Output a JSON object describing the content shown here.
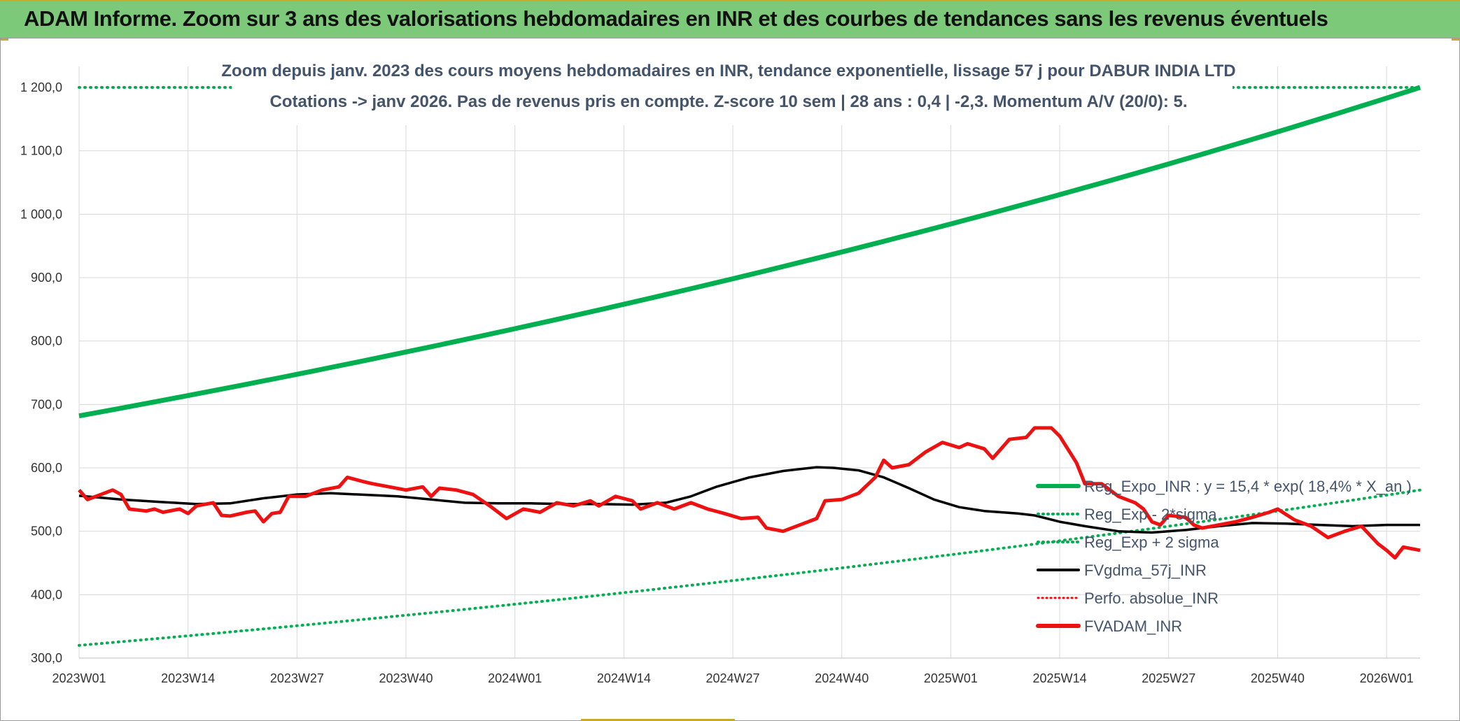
{
  "banner": {
    "title": "ADAM Informe. Zoom sur 3 ans des valorisations hebdomadaires en INR et des courbes de tendances sans les revenus éventuels",
    "bg_color": "#7dc97a"
  },
  "chart_data": {
    "type": "line",
    "title_line1": "Zoom depuis janv. 2023 des cours moyens hebdomadaires en INR, tendance exponentielle, lissage 57 j pour DABUR INDIA LTD",
    "title_line2": "Cotations -> janv 2026. Pas de revenus pris en compte. Z-score 10 sem | 28 ans : 0,4 | -2,3. Momentum A/V (20/0): 5.",
    "xlabel": "",
    "ylabel": "",
    "ylim": [
      300,
      1200
    ],
    "y_ticks": [
      "300,0",
      "400,0",
      "500,0",
      "600,0",
      "700,0",
      "800,0",
      "900,0",
      "1 000,0",
      "1 100,0",
      "1 200,0"
    ],
    "y_tick_values": [
      300,
      400,
      500,
      600,
      700,
      800,
      900,
      1000,
      1100,
      1200
    ],
    "x_ticks": [
      "2023W01",
      "2023W14",
      "2023W27",
      "2023W40",
      "2024W01",
      "2024W14",
      "2024W27",
      "2024W40",
      "2025W01",
      "2025W14",
      "2025W27",
      "2025W40",
      "2026W01"
    ],
    "x_tick_weeks": [
      0,
      13,
      26,
      39,
      52,
      65,
      78,
      91,
      104,
      117,
      130,
      143,
      156
    ],
    "x_total_weeks": 160,
    "grid": true,
    "legend_position": "bottom-right",
    "series": [
      {
        "name": "Reg_Expo_INR : y = 15,4 * exp( 18,4% * X_an )",
        "color": "#00b050",
        "style": "solid-thick",
        "start_value": 682,
        "end_value": 1200
      },
      {
        "name": "Reg_Exp - 2*sigma",
        "color": "#00b050",
        "style": "dotted",
        "start_value": 320,
        "end_value": 565
      },
      {
        "name": "Reg_Exp + 2 sigma",
        "color": "#00b050",
        "style": "dotted",
        "value": 1200
      },
      {
        "name": "FVgdma_57j_INR",
        "color": "#000000",
        "style": "solid",
        "points": [
          [
            0,
            556
          ],
          [
            5,
            550
          ],
          [
            10,
            546
          ],
          [
            14,
            543
          ],
          [
            18,
            544
          ],
          [
            22,
            552
          ],
          [
            26,
            558
          ],
          [
            30,
            560
          ],
          [
            35,
            557
          ],
          [
            38,
            555
          ],
          [
            42,
            550
          ],
          [
            46,
            545
          ],
          [
            50,
            544
          ],
          [
            54,
            544
          ],
          [
            58,
            543
          ],
          [
            62,
            543
          ],
          [
            66,
            542
          ],
          [
            70,
            545
          ],
          [
            73,
            555
          ],
          [
            76,
            570
          ],
          [
            80,
            585
          ],
          [
            84,
            595
          ],
          [
            88,
            601
          ],
          [
            90,
            600
          ],
          [
            93,
            596
          ],
          [
            96,
            585
          ],
          [
            99,
            568
          ],
          [
            102,
            550
          ],
          [
            105,
            538
          ],
          [
            108,
            532
          ],
          [
            112,
            528
          ],
          [
            114,
            525
          ],
          [
            117,
            515
          ],
          [
            120,
            508
          ],
          [
            124,
            500
          ],
          [
            128,
            498
          ],
          [
            132,
            502
          ],
          [
            136,
            508
          ],
          [
            140,
            513
          ],
          [
            144,
            512
          ],
          [
            148,
            510
          ],
          [
            152,
            508
          ],
          [
            156,
            510
          ],
          [
            160,
            510
          ]
        ]
      },
      {
        "name": "Perfo. absolue_INR",
        "color": "#ff0000",
        "style": "dotted"
      },
      {
        "name": "FVADAM_INR",
        "color": "#ee1111",
        "style": "solid-thick",
        "points": [
          [
            0,
            565
          ],
          [
            1,
            550
          ],
          [
            3,
            560
          ],
          [
            4,
            565
          ],
          [
            5,
            558
          ],
          [
            6,
            535
          ],
          [
            8,
            532
          ],
          [
            9,
            535
          ],
          [
            10,
            530
          ],
          [
            12,
            535
          ],
          [
            13,
            528
          ],
          [
            14,
            540
          ],
          [
            16,
            545
          ],
          [
            17,
            525
          ],
          [
            18,
            524
          ],
          [
            20,
            530
          ],
          [
            21,
            532
          ],
          [
            22,
            515
          ],
          [
            23,
            528
          ],
          [
            24,
            530
          ],
          [
            25,
            555
          ],
          [
            27,
            555
          ],
          [
            29,
            565
          ],
          [
            31,
            570
          ],
          [
            32,
            585
          ],
          [
            34,
            578
          ],
          [
            35,
            575
          ],
          [
            37,
            570
          ],
          [
            39,
            565
          ],
          [
            41,
            570
          ],
          [
            42,
            555
          ],
          [
            43,
            568
          ],
          [
            45,
            565
          ],
          [
            47,
            558
          ],
          [
            49,
            540
          ],
          [
            51,
            520
          ],
          [
            53,
            535
          ],
          [
            55,
            530
          ],
          [
            57,
            545
          ],
          [
            59,
            540
          ],
          [
            61,
            548
          ],
          [
            62,
            540
          ],
          [
            64,
            555
          ],
          [
            66,
            548
          ],
          [
            67,
            535
          ],
          [
            69,
            545
          ],
          [
            71,
            535
          ],
          [
            73,
            545
          ],
          [
            75,
            535
          ],
          [
            77,
            528
          ],
          [
            79,
            520
          ],
          [
            81,
            522
          ],
          [
            82,
            505
          ],
          [
            84,
            500
          ],
          [
            86,
            510
          ],
          [
            88,
            520
          ],
          [
            89,
            548
          ],
          [
            91,
            550
          ],
          [
            93,
            560
          ],
          [
            95,
            585
          ],
          [
            96,
            612
          ],
          [
            97,
            600
          ],
          [
            99,
            605
          ],
          [
            101,
            625
          ],
          [
            103,
            640
          ],
          [
            105,
            632
          ],
          [
            106,
            638
          ],
          [
            108,
            630
          ],
          [
            109,
            615
          ],
          [
            110,
            630
          ],
          [
            111,
            645
          ],
          [
            113,
            648
          ],
          [
            114,
            663
          ],
          [
            116,
            663
          ],
          [
            117,
            650
          ],
          [
            119,
            608
          ],
          [
            120,
            575
          ],
          [
            122,
            575
          ],
          [
            124,
            555
          ],
          [
            126,
            545
          ],
          [
            127,
            535
          ],
          [
            128,
            515
          ],
          [
            129,
            510
          ],
          [
            130,
            525
          ],
          [
            132,
            522
          ],
          [
            133,
            510
          ],
          [
            134,
            505
          ],
          [
            136,
            510
          ],
          [
            138,
            515
          ],
          [
            140,
            522
          ],
          [
            142,
            530
          ],
          [
            143,
            535
          ],
          [
            145,
            518
          ],
          [
            147,
            508
          ],
          [
            149,
            490
          ],
          [
            151,
            500
          ],
          [
            153,
            508
          ],
          [
            155,
            480
          ],
          [
            156,
            470
          ],
          [
            157,
            458
          ],
          [
            158,
            475
          ],
          [
            160,
            470
          ]
        ]
      }
    ]
  },
  "legend": {
    "items": [
      "Reg_Expo_INR : y = 15,4 * exp( 18,4% *  X_an )",
      "Reg_Exp - 2*sigma",
      "Reg_Exp + 2 sigma",
      "FVgdma_57j_INR",
      "Perfo. absolue_INR",
      "FVADAM_INR"
    ]
  }
}
